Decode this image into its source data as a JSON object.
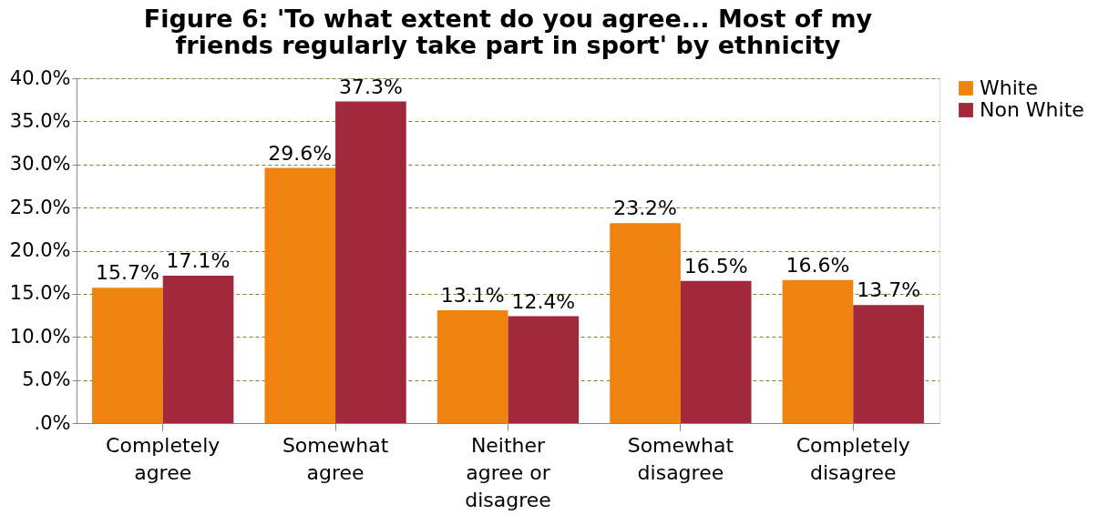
{
  "chart_data": {
    "type": "bar",
    "title": "Figure 6: 'To what extent do you agree... Most of my friends regularly take part in sport' by ethnicity",
    "categories": [
      "Completely agree",
      "Somewhat agree",
      "Neither agree or disagree",
      "Somewhat disagree",
      "Completely disagree"
    ],
    "series": [
      {
        "name": "White",
        "color": "#f0820f",
        "values": [
          15.7,
          29.6,
          13.1,
          23.2,
          16.6
        ],
        "value_labels": [
          "15.7%",
          "29.6%",
          "13.1%",
          "23.2%",
          "16.6%"
        ]
      },
      {
        "name": "Non White",
        "color": "#a0293a",
        "values": [
          17.1,
          37.3,
          12.4,
          16.5,
          13.7
        ],
        "value_labels": [
          "17.1%",
          "37.3%",
          "12.4%",
          "16.5%",
          "13.7%"
        ]
      }
    ],
    "ylim": [
      0,
      40
    ],
    "yticks": [
      {
        "value": 0,
        "label": ".0%"
      },
      {
        "value": 5,
        "label": "5.0%"
      },
      {
        "value": 10,
        "label": "10.0%"
      },
      {
        "value": 15,
        "label": "15.0%"
      },
      {
        "value": 20,
        "label": "20.0%"
      },
      {
        "value": 25,
        "label": "25.0%"
      },
      {
        "value": 30,
        "label": "30.0%"
      },
      {
        "value": 35,
        "label": "35.0%"
      },
      {
        "value": 40,
        "label": "40.0%"
      }
    ],
    "grid": "y",
    "legend": "right"
  }
}
